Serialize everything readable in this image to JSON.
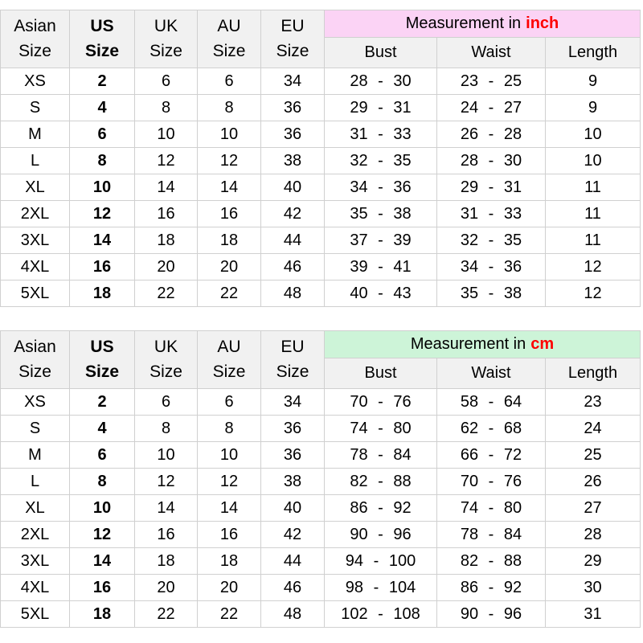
{
  "colors": {
    "header_bg": "#f1f1f1",
    "grid_border": "#d0d0d0",
    "us_size_highlight_inch": "#f8c9ef",
    "measurement_band_inch": "#fbd3f5",
    "us_size_highlight_cm": "#c8efcd",
    "measurement_band_cm": "#cdf4d8",
    "unit_text_red": "#fe0000"
  },
  "chart_data": [
    {
      "type": "table",
      "title": "Measurement in inch",
      "measurement_label": "Measurement in",
      "unit": "inch",
      "size_headers": [
        [
          "Asian",
          "Size"
        ],
        [
          "US",
          "Size"
        ],
        [
          "UK",
          "Size"
        ],
        [
          "AU",
          "Size"
        ],
        [
          "EU",
          "Size"
        ]
      ],
      "measure_headers": [
        "Bust",
        "Waist",
        "Length"
      ],
      "rows": [
        {
          "asian": "XS",
          "us": "2",
          "uk": "6",
          "au": "6",
          "eu": "34",
          "bust": "28 - 30",
          "waist": "23 - 25",
          "length": "9"
        },
        {
          "asian": "S",
          "us": "4",
          "uk": "8",
          "au": "8",
          "eu": "36",
          "bust": "29 - 31",
          "waist": "24 - 27",
          "length": "9"
        },
        {
          "asian": "M",
          "us": "6",
          "uk": "10",
          "au": "10",
          "eu": "36",
          "bust": "31 - 33",
          "waist": "26 - 28",
          "length": "10"
        },
        {
          "asian": "L",
          "us": "8",
          "uk": "12",
          "au": "12",
          "eu": "38",
          "bust": "32 - 35",
          "waist": "28 - 30",
          "length": "10"
        },
        {
          "asian": "XL",
          "us": "10",
          "uk": "14",
          "au": "14",
          "eu": "40",
          "bust": "34 - 36",
          "waist": "29 - 31",
          "length": "11"
        },
        {
          "asian": "2XL",
          "us": "12",
          "uk": "16",
          "au": "16",
          "eu": "42",
          "bust": "35 - 38",
          "waist": "31 - 33",
          "length": "11"
        },
        {
          "asian": "3XL",
          "us": "14",
          "uk": "18",
          "au": "18",
          "eu": "44",
          "bust": "37 - 39",
          "waist": "32 - 35",
          "length": "11"
        },
        {
          "asian": "4XL",
          "us": "16",
          "uk": "20",
          "au": "20",
          "eu": "46",
          "bust": "39 - 41",
          "waist": "34 - 36",
          "length": "12"
        },
        {
          "asian": "5XL",
          "us": "18",
          "uk": "22",
          "au": "22",
          "eu": "48",
          "bust": "40 - 43",
          "waist": "35 - 38",
          "length": "12"
        }
      ]
    },
    {
      "type": "table",
      "title": "Measurement in cm",
      "measurement_label": "Measurement in",
      "unit": "cm",
      "size_headers": [
        [
          "Asian",
          "Size"
        ],
        [
          "US",
          "Size"
        ],
        [
          "UK",
          "Size"
        ],
        [
          "AU",
          "Size"
        ],
        [
          "EU",
          "Size"
        ]
      ],
      "measure_headers": [
        "Bust",
        "Waist",
        "Length"
      ],
      "rows": [
        {
          "asian": "XS",
          "us": "2",
          "uk": "6",
          "au": "6",
          "eu": "34",
          "bust": "70 - 76",
          "waist": "58 - 64",
          "length": "23"
        },
        {
          "asian": "S",
          "us": "4",
          "uk": "8",
          "au": "8",
          "eu": "36",
          "bust": "74 - 80",
          "waist": "62 - 68",
          "length": "24"
        },
        {
          "asian": "M",
          "us": "6",
          "uk": "10",
          "au": "10",
          "eu": "36",
          "bust": "78 - 84",
          "waist": "66 - 72",
          "length": "25"
        },
        {
          "asian": "L",
          "us": "8",
          "uk": "12",
          "au": "12",
          "eu": "38",
          "bust": "82 - 88",
          "waist": "70 - 76",
          "length": "26"
        },
        {
          "asian": "XL",
          "us": "10",
          "uk": "14",
          "au": "14",
          "eu": "40",
          "bust": "86 - 92",
          "waist": "74 - 80",
          "length": "27"
        },
        {
          "asian": "2XL",
          "us": "12",
          "uk": "16",
          "au": "16",
          "eu": "42",
          "bust": "90 - 96",
          "waist": "78 - 84",
          "length": "28"
        },
        {
          "asian": "3XL",
          "us": "14",
          "uk": "18",
          "au": "18",
          "eu": "44",
          "bust": "94 - 100",
          "waist": "82 - 88",
          "length": "29"
        },
        {
          "asian": "4XL",
          "us": "16",
          "uk": "20",
          "au": "20",
          "eu": "46",
          "bust": "98 - 104",
          "waist": "86 - 92",
          "length": "30"
        },
        {
          "asian": "5XL",
          "us": "18",
          "uk": "22",
          "au": "22",
          "eu": "48",
          "bust": "102 - 108",
          "waist": "90 - 96",
          "length": "31"
        }
      ]
    }
  ]
}
